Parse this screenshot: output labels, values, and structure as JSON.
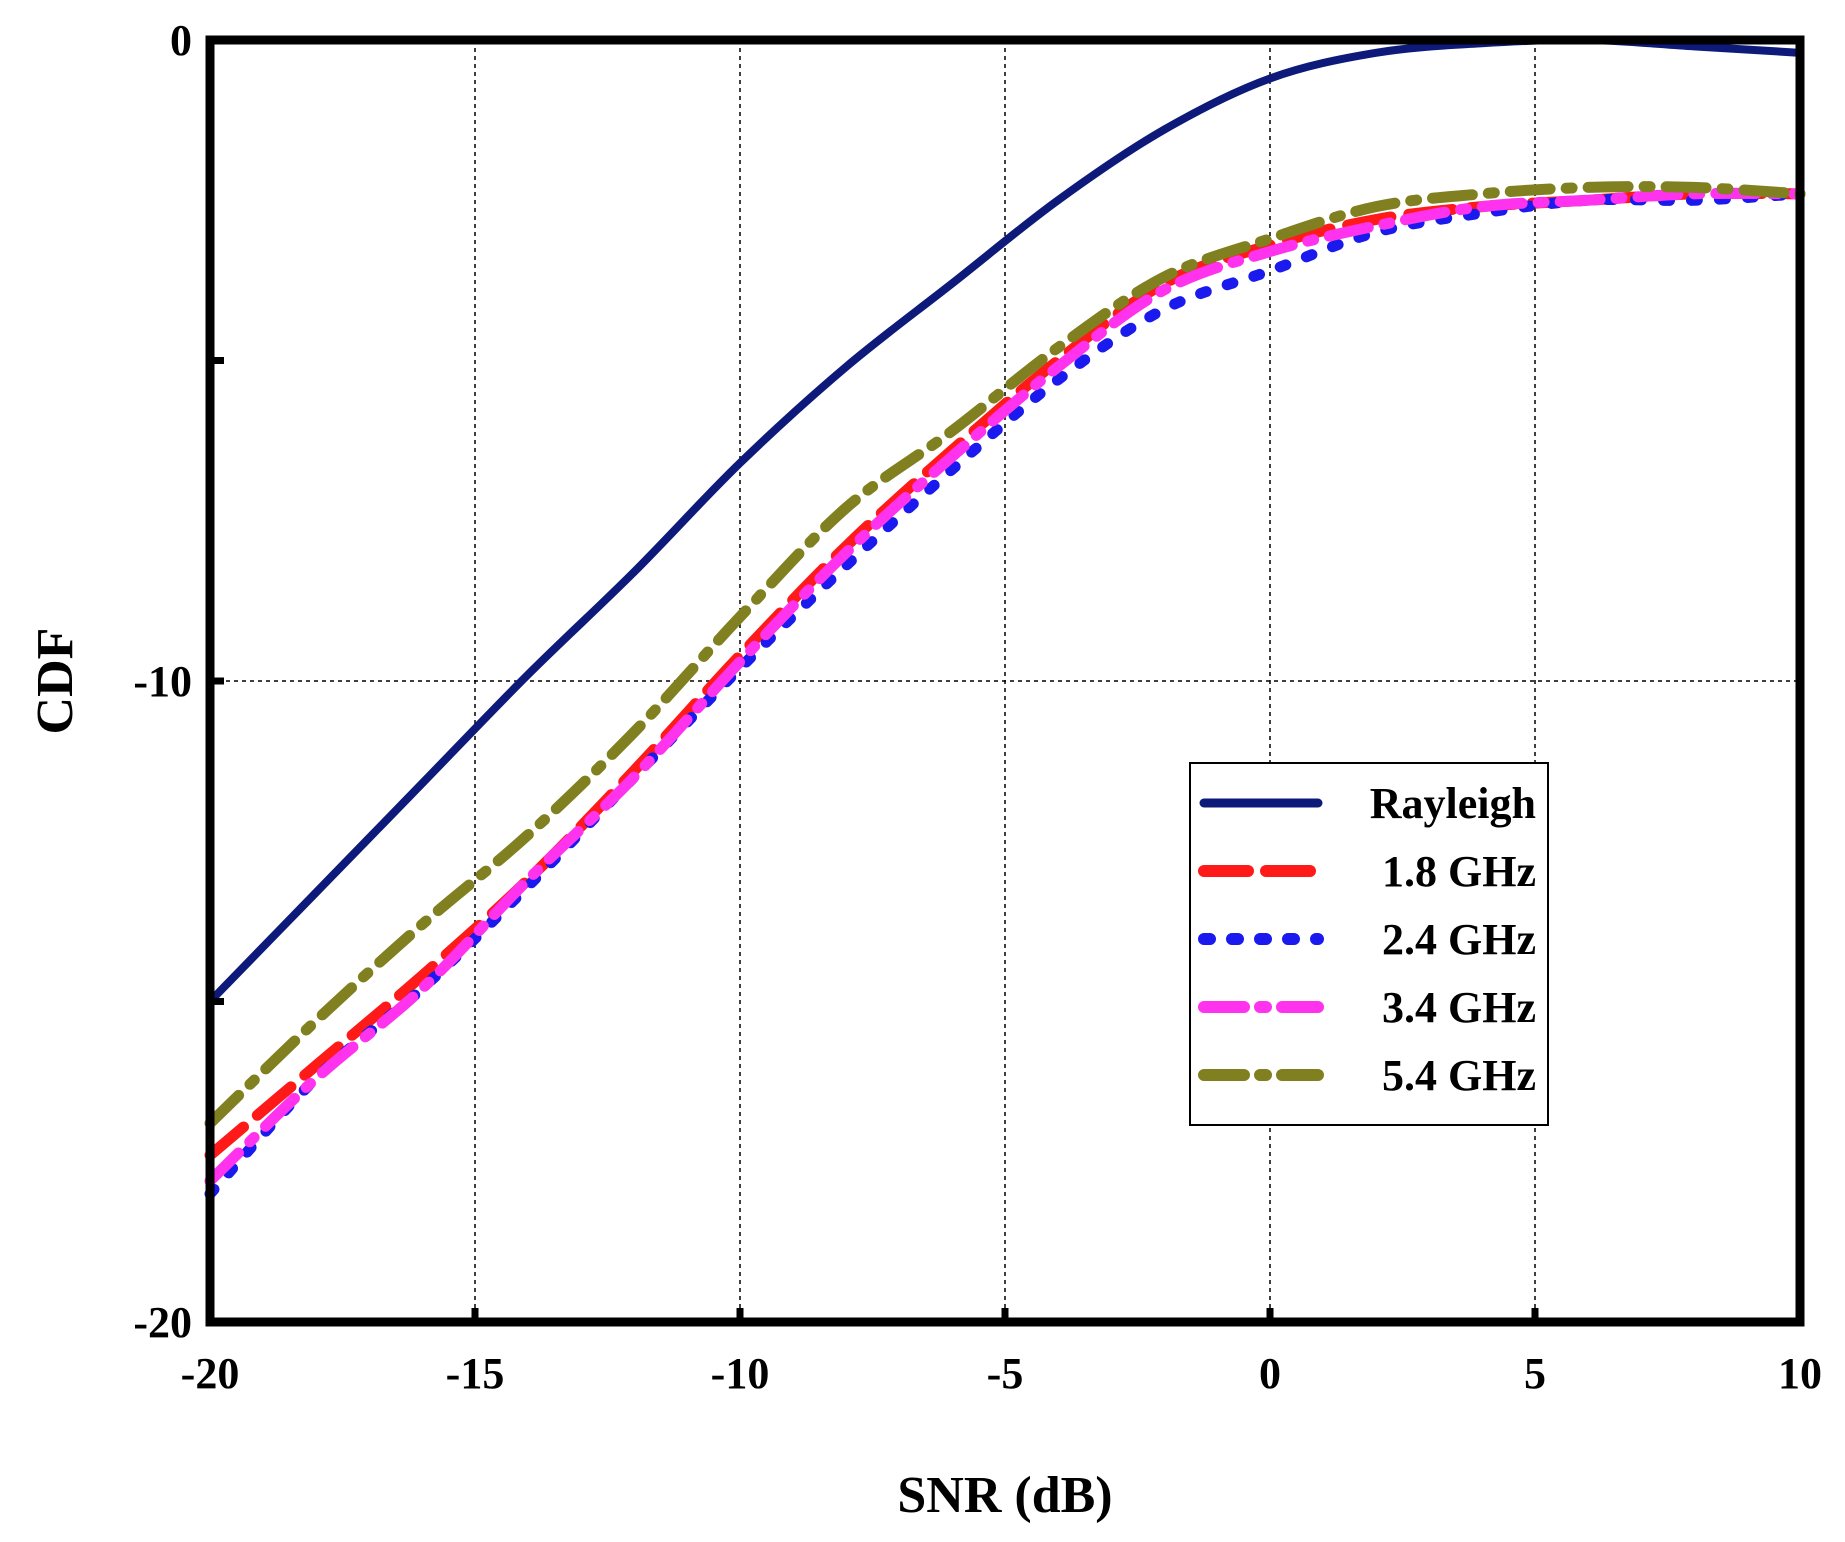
{
  "chart_data": {
    "type": "line",
    "title": "",
    "xlabel": "SNR (dB)",
    "ylabel": "CDF",
    "xlim": [
      -20,
      10
    ],
    "ylim": [
      -20,
      0
    ],
    "xticks": [
      -20,
      -15,
      -10,
      -5,
      0,
      5,
      10
    ],
    "xtick_labels": [
      "-20",
      "-15",
      "-10",
      "-5",
      "0",
      "5",
      "10"
    ],
    "yticks": [
      -20,
      -10,
      0
    ],
    "ytick_labels": [
      "-20",
      "-10",
      "0"
    ],
    "grid": true,
    "legend_position": "right-center",
    "series": [
      {
        "name": "Rayleigh",
        "color": "#0d1a7a",
        "style": "solid",
        "x": [
          -20,
          -18,
          -16,
          -14,
          -12,
          -10,
          -8,
          -6,
          -4,
          -2,
          0,
          2,
          4,
          6,
          8,
          10
        ],
        "y": [
          -15.0,
          -13.3,
          -11.6,
          -9.9,
          -8.3,
          -6.6,
          -5.1,
          -3.8,
          -2.5,
          -1.4,
          -0.6,
          -0.2,
          -0.05,
          0.0,
          -0.1,
          -0.2
        ]
      },
      {
        "name": "1.8 GHz",
        "color": "#ff1a1a",
        "style": "dash",
        "x": [
          -20,
          -18,
          -16,
          -14,
          -12,
          -10,
          -8,
          -6,
          -4,
          -2,
          0,
          2,
          4,
          6,
          8,
          10
        ],
        "y": [
          -17.4,
          -16.0,
          -14.6,
          -13.1,
          -11.4,
          -9.6,
          -7.9,
          -6.4,
          -5.0,
          -3.8,
          -3.2,
          -2.8,
          -2.6,
          -2.5,
          -2.4,
          -2.4
        ]
      },
      {
        "name": "2.4 GHz",
        "color": "#1a1aee",
        "style": "dot",
        "x": [
          -20,
          -18,
          -16,
          -14,
          -12,
          -10,
          -8,
          -6,
          -4,
          -2,
          0,
          2,
          4,
          6,
          8,
          10
        ],
        "y": [
          -18.0,
          -16.2,
          -14.8,
          -13.2,
          -11.5,
          -9.8,
          -8.2,
          -6.7,
          -5.3,
          -4.2,
          -3.6,
          -3.0,
          -2.7,
          -2.5,
          -2.5,
          -2.4
        ]
      },
      {
        "name": "3.4 GHz",
        "color": "#ff33ee",
        "style": "dashdot",
        "x": [
          -20,
          -18,
          -16,
          -14,
          -12,
          -10,
          -8,
          -6,
          -4,
          -2,
          0,
          2,
          4,
          6,
          8,
          10
        ],
        "y": [
          -17.8,
          -16.2,
          -14.8,
          -13.1,
          -11.5,
          -9.7,
          -8.0,
          -6.5,
          -5.1,
          -3.9,
          -3.3,
          -2.9,
          -2.6,
          -2.5,
          -2.4,
          -2.4
        ]
      },
      {
        "name": "5.4 GHz",
        "color": "#808020",
        "style": "dashdot",
        "x": [
          -20,
          -18,
          -16,
          -14,
          -12,
          -10,
          -8,
          -6,
          -4,
          -2,
          0,
          2,
          4,
          6,
          8,
          10
        ],
        "y": [
          -16.9,
          -15.3,
          -13.8,
          -12.4,
          -10.8,
          -9.0,
          -7.3,
          -6.1,
          -4.8,
          -3.7,
          -3.1,
          -2.6,
          -2.4,
          -2.3,
          -2.3,
          -2.4
        ]
      }
    ]
  }
}
